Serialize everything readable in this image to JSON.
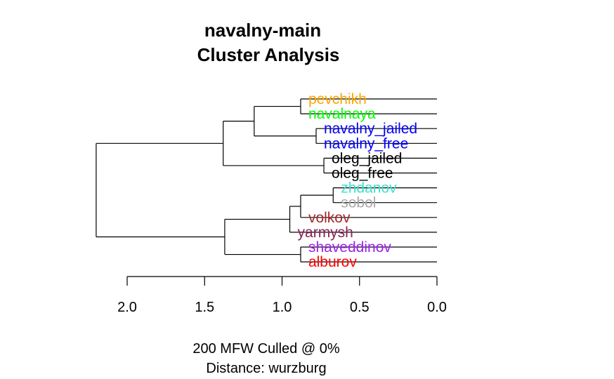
{
  "chart_data": {
    "type": "dendrogram",
    "title_lines": [
      "navalny-main",
      "Cluster Analysis"
    ],
    "subtitle_lines": [
      "200 MFW  Culled @ 0%",
      "Distance: wurzburg"
    ],
    "xlim": [
      2.0,
      0.0
    ],
    "x_ticks": [
      2.0,
      1.5,
      1.0,
      0.5,
      0.0
    ],
    "x_tick_labels": [
      "2.0",
      "1.5",
      "1.0",
      "0.5",
      "0.0"
    ],
    "leaves": [
      {
        "label": "pevchikh",
        "color": "#FFA500"
      },
      {
        "label": "navalnaya",
        "color": "#00FF00"
      },
      {
        "label": "navalny_jailed",
        "color": "#0000FF"
      },
      {
        "label": "navalny_free",
        "color": "#0000FF"
      },
      {
        "label": "oleg_jailed",
        "color": "#000000"
      },
      {
        "label": "oleg_free",
        "color": "#000000"
      },
      {
        "label": "zhdanov",
        "color": "#40E0D0"
      },
      {
        "label": "sobol",
        "color": "#A9A9A9"
      },
      {
        "label": "volkov",
        "color": "#A52A2A"
      },
      {
        "label": "yarmysh",
        "color": "#8B2252"
      },
      {
        "label": "shaveddinov",
        "color": "#A020F0"
      },
      {
        "label": "alburov",
        "color": "#FF0000"
      }
    ],
    "merges": [
      {
        "id": "m1",
        "left": 0,
        "right": 1,
        "height": 0.88
      },
      {
        "id": "m2",
        "left": 2,
        "right": 3,
        "height": 0.78
      },
      {
        "id": "m3",
        "left": 4,
        "right": 5,
        "height": 0.73
      },
      {
        "id": "m4",
        "left": 6,
        "right": 7,
        "height": 0.67
      },
      {
        "id": "m5",
        "left": 10,
        "right": 11,
        "height": 0.88
      },
      {
        "id": "m6",
        "left": "m1",
        "right": "m2",
        "height": 1.18
      },
      {
        "id": "m7",
        "left": "m4",
        "right": 8,
        "height": 0.88
      },
      {
        "id": "m8",
        "left": "m7",
        "right": 9,
        "height": 0.95
      },
      {
        "id": "m9",
        "left": "m6",
        "right": "m3",
        "height": 1.38
      },
      {
        "id": "m10",
        "left": "m8",
        "right": "m5",
        "height": 1.37
      },
      {
        "id": "m11",
        "left": "m9",
        "right": "m10",
        "height": 2.2
      }
    ]
  }
}
